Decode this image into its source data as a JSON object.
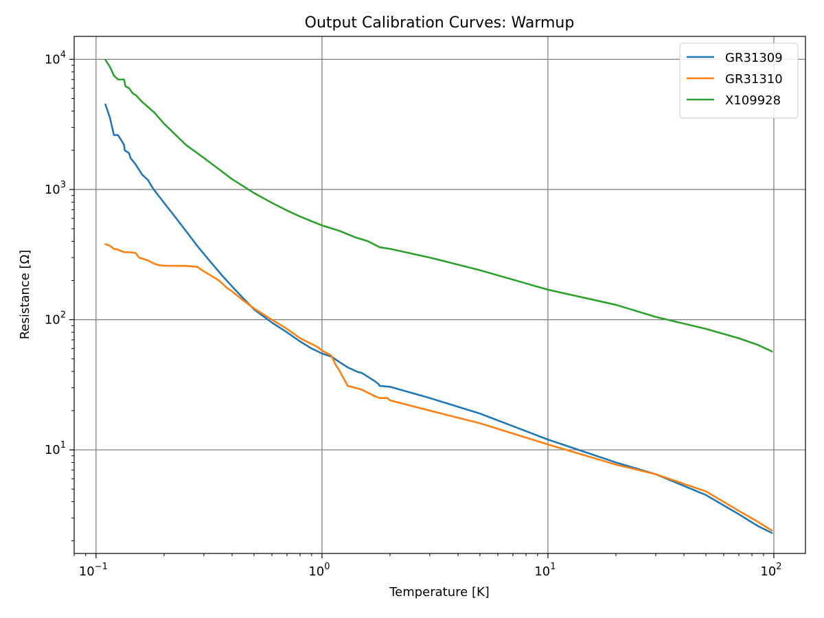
{
  "chart_data": {
    "type": "line",
    "title": "Output Calibration Curves: Warmup",
    "xlabel": "Temperature [K]",
    "ylabel": "Resistance [Ω]",
    "xscale": "log",
    "yscale": "log",
    "xlim": [
      0.08,
      138
    ],
    "ylim": [
      1.6,
      15000
    ],
    "grid": true,
    "legend": "top-right",
    "xticks": [
      {
        "value": 0.1,
        "base": "10",
        "exp": "−1"
      },
      {
        "value": 1,
        "base": "10",
        "exp": "0"
      },
      {
        "value": 10,
        "base": "10",
        "exp": "1"
      },
      {
        "value": 100,
        "base": "10",
        "exp": "2"
      }
    ],
    "yticks": [
      {
        "value": 10,
        "base": "10",
        "exp": "1"
      },
      {
        "value": 100,
        "base": "10",
        "exp": "2"
      },
      {
        "value": 1000,
        "base": "10",
        "exp": "3"
      },
      {
        "value": 10000,
        "base": "10",
        "exp": "4"
      }
    ],
    "series": [
      {
        "name": "GR31309",
        "color": "#1f77b4",
        "points": [
          [
            0.11,
            4500
          ],
          [
            0.115,
            3600
          ],
          [
            0.12,
            2620
          ],
          [
            0.125,
            2620
          ],
          [
            0.13,
            2350
          ],
          [
            0.133,
            2200
          ],
          [
            0.134,
            2000
          ],
          [
            0.14,
            1900
          ],
          [
            0.142,
            1750
          ],
          [
            0.15,
            1550
          ],
          [
            0.16,
            1300
          ],
          [
            0.17,
            1180
          ],
          [
            0.175,
            1080
          ],
          [
            0.18,
            1000
          ],
          [
            0.2,
            790
          ],
          [
            0.22,
            640
          ],
          [
            0.25,
            480
          ],
          [
            0.28,
            370
          ],
          [
            0.32,
            280
          ],
          [
            0.36,
            220
          ],
          [
            0.4,
            180
          ],
          [
            0.45,
            145
          ],
          [
            0.5,
            120
          ],
          [
            0.6,
            95
          ],
          [
            0.7,
            80
          ],
          [
            0.8,
            68
          ],
          [
            0.9,
            60
          ],
          [
            1.0,
            55
          ],
          [
            1.1,
            52
          ],
          [
            1.2,
            47
          ],
          [
            1.3,
            43
          ],
          [
            1.45,
            39.5
          ],
          [
            1.5,
            39
          ],
          [
            1.7,
            34
          ],
          [
            1.78,
            32
          ],
          [
            1.8,
            31
          ],
          [
            2.0,
            30.5
          ],
          [
            3,
            25
          ],
          [
            5,
            19
          ],
          [
            10,
            12
          ],
          [
            20,
            8
          ],
          [
            30,
            6.5
          ],
          [
            50,
            4.5
          ],
          [
            70,
            3.2
          ],
          [
            85,
            2.6
          ],
          [
            98,
            2.3
          ]
        ]
      },
      {
        "name": "GR31310",
        "color": "#ff7f0e",
        "points": [
          [
            0.11,
            380
          ],
          [
            0.115,
            370
          ],
          [
            0.12,
            350
          ],
          [
            0.125,
            345
          ],
          [
            0.13,
            335
          ],
          [
            0.133,
            330
          ],
          [
            0.14,
            330
          ],
          [
            0.15,
            325
          ],
          [
            0.155,
            300
          ],
          [
            0.16,
            295
          ],
          [
            0.17,
            285
          ],
          [
            0.18,
            270
          ],
          [
            0.19,
            262
          ],
          [
            0.2,
            260
          ],
          [
            0.22,
            259
          ],
          [
            0.25,
            259
          ],
          [
            0.28,
            255
          ],
          [
            0.3,
            235
          ],
          [
            0.32,
            220
          ],
          [
            0.35,
            200
          ],
          [
            0.38,
            175
          ],
          [
            0.4,
            165
          ],
          [
            0.45,
            140
          ],
          [
            0.5,
            122
          ],
          [
            0.6,
            100
          ],
          [
            0.7,
            85
          ],
          [
            0.8,
            72
          ],
          [
            0.9,
            65
          ],
          [
            0.95,
            62
          ],
          [
            1.0,
            58
          ],
          [
            1.1,
            53
          ],
          [
            1.15,
            45
          ],
          [
            1.2,
            40
          ],
          [
            1.3,
            31
          ],
          [
            1.4,
            30
          ],
          [
            1.5,
            29
          ],
          [
            1.7,
            26
          ],
          [
            1.8,
            25
          ],
          [
            1.95,
            25
          ],
          [
            2.0,
            24
          ],
          [
            3,
            20
          ],
          [
            5,
            16
          ],
          [
            10,
            11
          ],
          [
            20,
            7.7
          ],
          [
            30,
            6.5
          ],
          [
            50,
            4.8
          ],
          [
            70,
            3.4
          ],
          [
            85,
            2.8
          ],
          [
            98,
            2.4
          ]
        ]
      },
      {
        "name": "X109928",
        "color": "#2ca02c",
        "points": [
          [
            0.11,
            9900
          ],
          [
            0.115,
            8800
          ],
          [
            0.12,
            7500
          ],
          [
            0.125,
            7000
          ],
          [
            0.13,
            7000
          ],
          [
            0.133,
            7000
          ],
          [
            0.135,
            6200
          ],
          [
            0.14,
            6000
          ],
          [
            0.145,
            5500
          ],
          [
            0.15,
            5300
          ],
          [
            0.16,
            4700
          ],
          [
            0.17,
            4300
          ],
          [
            0.175,
            4100
          ],
          [
            0.18,
            3950
          ],
          [
            0.2,
            3200
          ],
          [
            0.25,
            2200
          ],
          [
            0.3,
            1750
          ],
          [
            0.35,
            1430
          ],
          [
            0.4,
            1200
          ],
          [
            0.5,
            940
          ],
          [
            0.6,
            790
          ],
          [
            0.7,
            690
          ],
          [
            0.8,
            620
          ],
          [
            0.9,
            570
          ],
          [
            1.0,
            530
          ],
          [
            1.2,
            480
          ],
          [
            1.4,
            430
          ],
          [
            1.6,
            400
          ],
          [
            1.8,
            360
          ],
          [
            2,
            350
          ],
          [
            3,
            300
          ],
          [
            5,
            240
          ],
          [
            10,
            170
          ],
          [
            20,
            130
          ],
          [
            30,
            105
          ],
          [
            50,
            85
          ],
          [
            70,
            72
          ],
          [
            85,
            64
          ],
          [
            98,
            57
          ]
        ]
      }
    ]
  }
}
